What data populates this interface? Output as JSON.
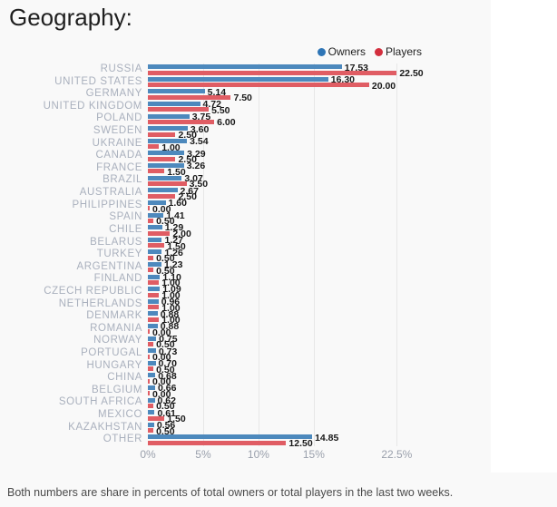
{
  "page": {
    "title": "Geography:",
    "footer": "Both numbers are share in percents of total owners or total players in the last two weeks."
  },
  "colors": {
    "owners_bar": "#4d89bd",
    "players_bar": "#e05d64",
    "owners_legend_dot": "#2e75b6",
    "players_legend_dot": "#d32f3e",
    "grid_line": "#e7e7e7",
    "category_label": "#a9b0bd",
    "tick_label": "#9aa0ac",
    "value_label": "#191919",
    "panel_bg": "#f9f9f9"
  },
  "chart_data": {
    "type": "bar",
    "orientation": "horizontal",
    "title": "Geography:",
    "categories": [
      "RUSSIA",
      "UNITED STATES",
      "GERMANY",
      "UNITED KINGDOM",
      "POLAND",
      "SWEDEN",
      "UKRAINE",
      "CANADA",
      "FRANCE",
      "BRAZIL",
      "AUSTRALIA",
      "PHILIPPINES",
      "SPAIN",
      "CHILE",
      "BELARUS",
      "TURKEY",
      "ARGENTINA",
      "FINLAND",
      "CZECH REPUBLIC",
      "NETHERLANDS",
      "DENMARK",
      "ROMANIA",
      "NORWAY",
      "PORTUGAL",
      "HUNGARY",
      "CHINA",
      "BELGIUM",
      "SOUTH AFRICA",
      "MEXICO",
      "KAZAKHSTAN",
      "OTHER"
    ],
    "series": [
      {
        "name": "Owners",
        "color": "#4d89bd",
        "values": [
          17.53,
          16.3,
          5.14,
          4.72,
          3.75,
          3.6,
          3.54,
          3.29,
          3.26,
          3.07,
          2.67,
          1.6,
          1.41,
          1.29,
          1.27,
          1.26,
          1.23,
          1.1,
          1.09,
          0.96,
          0.88,
          0.88,
          0.75,
          0.73,
          0.7,
          0.68,
          0.66,
          0.62,
          0.61,
          0.56,
          14.85
        ]
      },
      {
        "name": "Players",
        "color": "#e05d64",
        "values": [
          22.5,
          20.0,
          7.5,
          5.5,
          6.0,
          2.5,
          1.0,
          2.5,
          1.5,
          3.5,
          2.5,
          0.0,
          0.5,
          2.0,
          1.5,
          0.5,
          0.5,
          1.0,
          1.0,
          1.0,
          1.0,
          0.0,
          0.5,
          0.0,
          0.5,
          0.0,
          0.0,
          0.5,
          1.5,
          0.5,
          12.5
        ]
      }
    ],
    "x_ticks": [
      {
        "label": "0%",
        "value": 0
      },
      {
        "label": "5%",
        "value": 5
      },
      {
        "label": "10%",
        "value": 10
      },
      {
        "label": "15%",
        "value": 15
      },
      {
        "label": "22.5%",
        "value": 22.5
      }
    ],
    "xlim": [
      0,
      31
    ],
    "value_label_decimals": 2,
    "grid": true,
    "legend_position": "top-right",
    "footnote": "Both numbers are share in percents of total owners or total players in the last two weeks."
  }
}
